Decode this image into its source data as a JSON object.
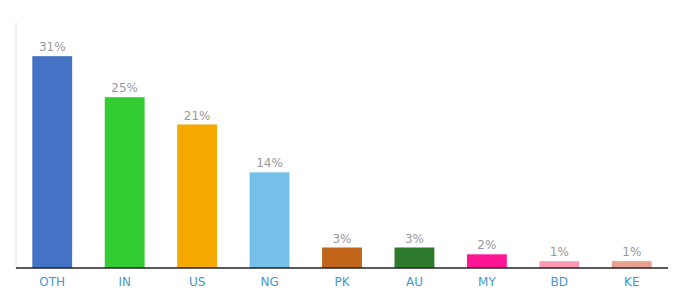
{
  "chart_data": {
    "type": "bar",
    "categories": [
      "OTH",
      "IN",
      "US",
      "NG",
      "PK",
      "AU",
      "MY",
      "BD",
      "KE"
    ],
    "values": [
      31,
      25,
      21,
      14,
      3,
      3,
      2,
      1,
      1
    ],
    "value_labels": [
      "31%",
      "25%",
      "21%",
      "14%",
      "3%",
      "3%",
      "2%",
      "1%",
      "1%"
    ],
    "colors": [
      "#4472c4",
      "#33cc33",
      "#f5a800",
      "#74c0e8",
      "#c0651a",
      "#2d7a2d",
      "#ff1493",
      "#ff9ab5",
      "#e8a090"
    ],
    "ylim": [
      0,
      36
    ],
    "data_labels": true,
    "tick_labels": "x"
  }
}
